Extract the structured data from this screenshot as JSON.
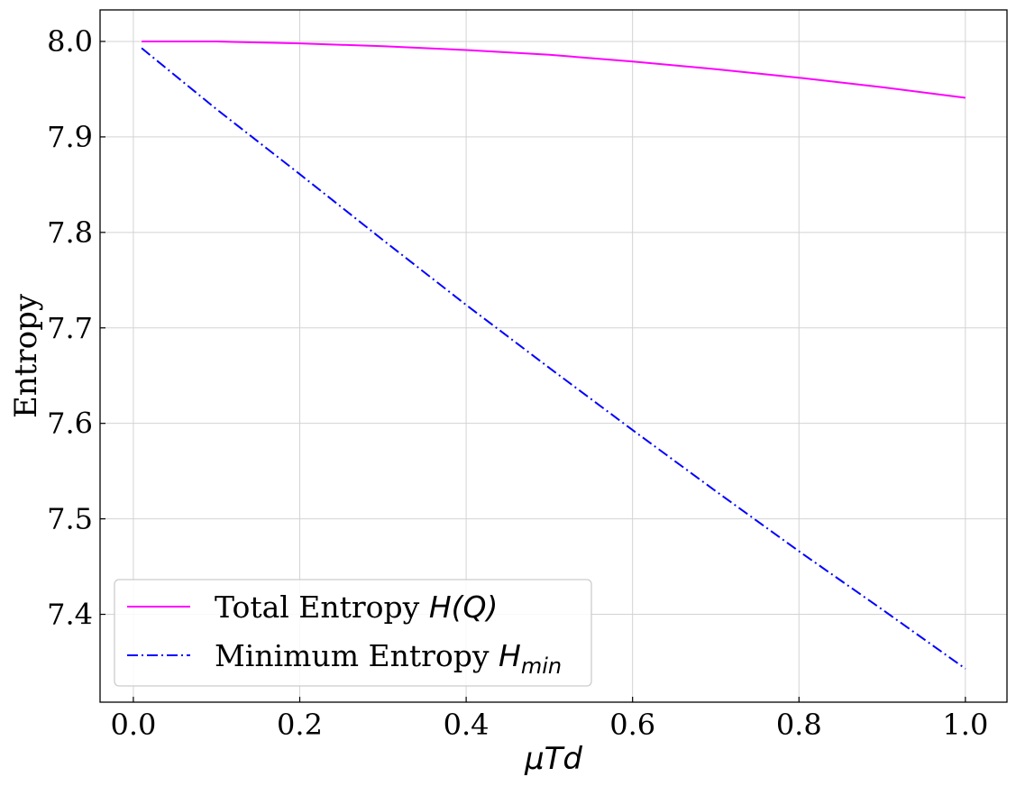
{
  "chart_data": {
    "type": "line",
    "title": "",
    "xlabel": "μTd",
    "ylabel": "Entropy",
    "xlim": [
      -0.04,
      1.05
    ],
    "ylim": [
      7.308,
      8.033
    ],
    "xticks": [
      0.0,
      0.2,
      0.4,
      0.6,
      0.8,
      1.0
    ],
    "xtick_labels": [
      "0.0",
      "0.2",
      "0.4",
      "0.6",
      "0.8",
      "1.0"
    ],
    "yticks": [
      7.4,
      7.5,
      7.6,
      7.7,
      7.8,
      7.9,
      8.0
    ],
    "ytick_labels": [
      "7.4",
      "7.5",
      "7.6",
      "7.7",
      "7.8",
      "7.9",
      "8.0"
    ],
    "grid": true,
    "legend_position": "bottom-left",
    "series": [
      {
        "name": "Total Entropy H(Q)",
        "legend_text": "Total Entropy ",
        "legend_math": "H(Q)",
        "legend_sub": "",
        "color": "#ff00ff",
        "style": "solid",
        "x": [
          0.01,
          0.1,
          0.2,
          0.3,
          0.4,
          0.5,
          0.6,
          0.7,
          0.8,
          0.9,
          1.0
        ],
        "y": [
          8.0,
          8.0,
          7.998,
          7.995,
          7.991,
          7.986,
          7.979,
          7.971,
          7.962,
          7.952,
          7.941
        ]
      },
      {
        "name": "Minimum Entropy H_min",
        "legend_text": "Minimum Entropy ",
        "legend_math": "H",
        "legend_sub": "min",
        "color": "#0000ff",
        "style": "dashdot",
        "x": [
          0.01,
          0.1,
          0.2,
          0.3,
          0.4,
          0.5,
          0.6,
          0.7,
          0.8,
          0.9,
          1.0
        ],
        "y": [
          7.993,
          7.929,
          7.861,
          7.792,
          7.724,
          7.658,
          7.593,
          7.529,
          7.466,
          7.405,
          7.343
        ]
      }
    ]
  }
}
